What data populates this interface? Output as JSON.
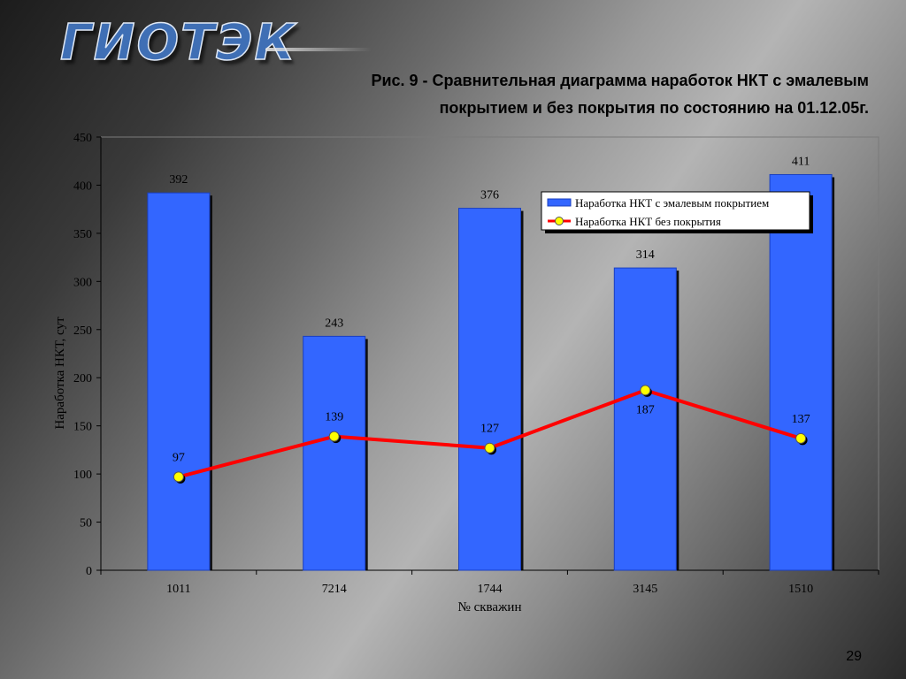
{
  "header": {
    "logo_text": "ГИОТЭК",
    "title_line1": "Рис. 9 - Сравнительная диаграмма наработок НКТ с эмалевым",
    "title_line2": "покрытием и без покрытия по состоянию на 01.12.05г."
  },
  "page_number": "29",
  "chart_data": {
    "type": "bar",
    "categories": [
      "1011",
      "7214",
      "1744",
      "3145",
      "1510"
    ],
    "xlabel": "№ скважин",
    "ylabel": "Наработка НКТ, сут",
    "ylim": [
      0,
      450
    ],
    "yticks": [
      0,
      50,
      100,
      150,
      200,
      250,
      300,
      350,
      400,
      450
    ],
    "grid": false,
    "legend_position": "top-right",
    "series": [
      {
        "name": "Наработка НКТ с эмалевым покрытием",
        "type": "bar",
        "color": "#3366ff",
        "values": [
          392,
          243,
          376,
          314,
          411
        ]
      },
      {
        "name": "Наработка НКТ без покрытия",
        "type": "line",
        "color": "#ff0000",
        "marker_color": "#ffff00",
        "values": [
          97,
          139,
          127,
          187,
          137
        ]
      }
    ]
  }
}
